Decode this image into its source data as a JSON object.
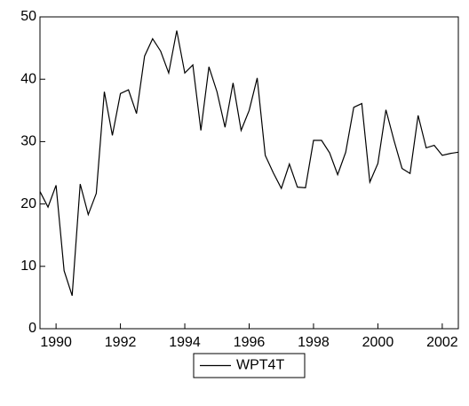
{
  "chart_data": {
    "type": "line",
    "x": [
      1989.5,
      1989.75,
      1990,
      1990.25,
      1990.5,
      1990.75,
      1991,
      1991.25,
      1991.5,
      1991.75,
      1992,
      1992.25,
      1992.5,
      1992.75,
      1993,
      1993.25,
      1993.5,
      1993.75,
      1994,
      1994.25,
      1994.5,
      1994.75,
      1995,
      1995.25,
      1995.5,
      1995.75,
      1996,
      1996.25,
      1996.5,
      1996.75,
      1997,
      1997.25,
      1997.5,
      1997.75,
      1998,
      1998.25,
      1998.5,
      1998.75,
      1999,
      1999.25,
      1999.5,
      1999.75,
      2000,
      2000.25,
      2000.5,
      2000.75,
      2001,
      2001.25,
      2001.5,
      2001.75,
      2002,
      2002.25,
      2002.5
    ],
    "series": [
      {
        "name": "WPT4T",
        "color": "#000000",
        "values": [
          22,
          19.5,
          23,
          9.3,
          5.3,
          23.2,
          18.3,
          21.7,
          38,
          31,
          37.7,
          38.3,
          34.5,
          43.7,
          46.5,
          44.5,
          41,
          47.8,
          41,
          42.3,
          31.8,
          42,
          38,
          32.3,
          39.4,
          31.8,
          35,
          40.2,
          27.8,
          25,
          22.5,
          26.4,
          22.7,
          22.6,
          30.2,
          30.2,
          28.2,
          24.7,
          28.3,
          35.5,
          36.1,
          23.5,
          26.5,
          35.1,
          30.2,
          25.7,
          24.9,
          34.2,
          29,
          29.4,
          27.8,
          28.1,
          28.3
        ]
      }
    ],
    "xlim": [
      1989.5,
      2002.5
    ],
    "xticks": [
      1990,
      1992,
      1994,
      1996,
      1998,
      2000,
      2002
    ],
    "ylim": [
      0,
      50
    ],
    "yticks": [
      0,
      10,
      20,
      30,
      40,
      50
    ],
    "grid": false,
    "legend": "bottom"
  }
}
